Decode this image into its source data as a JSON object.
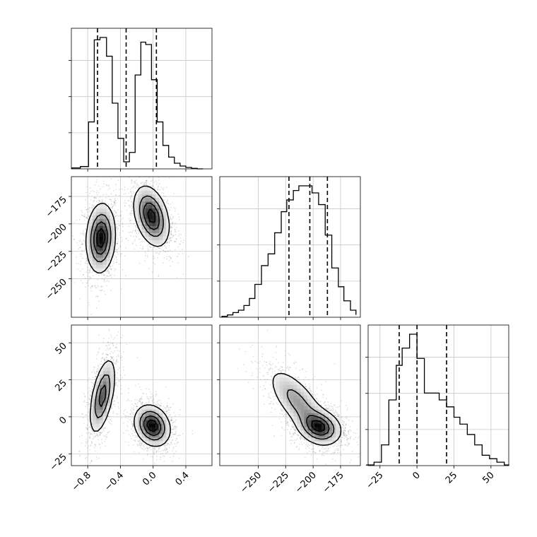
{
  "chart_data": {
    "type": "corner",
    "parameters": [
      "p0",
      "p1",
      "p2"
    ],
    "ranges": {
      "p0": [
        -1.0,
        0.72
      ],
      "p1": [
        -285,
        -157
      ],
      "p2": [
        -33,
        62
      ]
    },
    "ticks": {
      "p0": [
        -0.8,
        -0.4,
        0.0,
        0.4
      ],
      "p1": [
        -250,
        -225,
        -200,
        -175
      ],
      "p2": [
        -25,
        0,
        25,
        50
      ]
    },
    "tick_labels": {
      "p0": [
        "−0.8",
        "−0.4",
        "0.0",
        "0.4"
      ],
      "p1": [
        "−250",
        "−225",
        "−200",
        "−175"
      ],
      "p2": [
        "−25",
        "0",
        "25",
        "50"
      ]
    },
    "grid": true,
    "histograms": [
      {
        "param": "p0",
        "bin_edges": [
          -0.99,
          -0.89,
          -0.79,
          -0.72,
          -0.65,
          -0.57,
          -0.5,
          -0.43,
          -0.36,
          -0.29,
          -0.22,
          -0.15,
          -0.09,
          -0.02,
          0.05,
          0.12,
          0.19,
          0.26,
          0.33,
          0.4,
          0.47,
          0.54,
          0.61
        ],
        "counts": [
          2,
          5,
          100,
          275,
          280,
          240,
          140,
          65,
          15,
          35,
          200,
          270,
          265,
          190,
          100,
          50,
          25,
          12,
          6,
          3,
          1,
          0
        ],
        "quantiles": [
          -0.68,
          -0.33,
          0.04
        ]
      },
      {
        "param": "p1",
        "bin_edges": [
          -283,
          -278,
          -273,
          -268,
          -263,
          -258,
          -253,
          -247,
          -241,
          -235,
          -229,
          -224,
          -218,
          -213,
          -207,
          -201,
          -195,
          -189,
          -183,
          -177,
          -172,
          -166,
          -161
        ],
        "counts": [
          2,
          5,
          10,
          15,
          25,
          40,
          70,
          110,
          135,
          180,
          225,
          250,
          270,
          280,
          280,
          265,
          240,
          175,
          105,
          65,
          35,
          15,
          5
        ],
        "quantiles": [
          -222,
          -203,
          -187
        ]
      },
      {
        "param": "p2",
        "bin_edges": [
          -34,
          -29,
          -24,
          -19,
          -14,
          -10,
          -5,
          0,
          5,
          10,
          15,
          20,
          25,
          29,
          34,
          39,
          44,
          49,
          54,
          59,
          62
        ],
        "counts": [
          1,
          5,
          30,
          95,
          145,
          170,
          190,
          155,
          105,
          105,
          95,
          85,
          70,
          60,
          45,
          30,
          15,
          10,
          5,
          1
        ],
        "quantiles": [
          -12,
          0,
          20
        ]
      }
    ],
    "density_panels": [
      {
        "x": "p0",
        "y": "p1",
        "modes": [
          {
            "cx": -0.64,
            "cy": -213,
            "sx": 0.09,
            "sy": 16,
            "rho": 0.1,
            "peak": 1.0
          },
          {
            "cx": -0.02,
            "cy": -193,
            "sx": 0.11,
            "sy": 14,
            "rho": -0.35,
            "peak": 0.95
          }
        ]
      },
      {
        "x": "p0",
        "y": "p2",
        "modes": [
          {
            "cx": -0.62,
            "cy": 14,
            "sx": 0.08,
            "sy": 13,
            "rho": 0.55,
            "peak": 0.75
          },
          {
            "cx": -0.01,
            "cy": -6,
            "sx": 0.11,
            "sy": 7,
            "rho": -0.2,
            "peak": 1.0
          }
        ]
      },
      {
        "x": "p1",
        "y": "p2",
        "modes": [
          {
            "cx": -214,
            "cy": 10,
            "sx": 14,
            "sy": 12,
            "rho": -0.7,
            "peak": 0.6
          },
          {
            "cx": -194,
            "cy": -7,
            "sx": 10,
            "sy": 6,
            "rho": -0.2,
            "peak": 1.0
          }
        ]
      }
    ]
  }
}
